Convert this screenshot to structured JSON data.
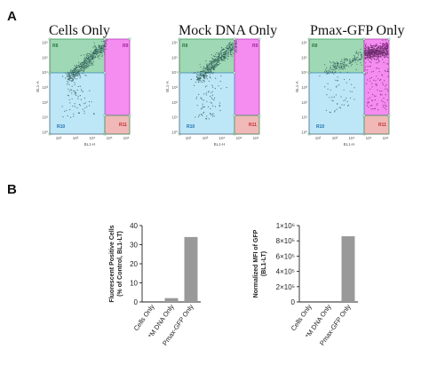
{
  "figure": {
    "panel_a_label": "A",
    "panel_b_label": "B"
  },
  "colors": {
    "gate_green": "#9fd8b4",
    "gate_pink": "#f58cf0",
    "gate_blue": "#bde6f7",
    "gate_red": "#f1b8b8",
    "events_dark": "#2e5f58",
    "events_gfp": "#6b2a6b",
    "bar_gray": "#999999"
  },
  "flow_plots": [
    {
      "title": "Cells Only",
      "x_axis_label": "BL1-H",
      "y_axis_label": "BL1-A",
      "x_ticks": [
        "10²",
        "10³",
        "10⁴",
        "10⁵",
        "10⁶"
      ],
      "y_ticks": [
        "10⁶",
        "10⁵",
        "10⁴",
        "10³",
        "10²",
        "10¹",
        "10⁰"
      ],
      "x_scale": "log",
      "y_scale": "log",
      "gates": {
        "upper_left": "R8",
        "upper_right": "R9",
        "lower_left": "R10",
        "lower_right": "R11"
      },
      "population": "gfp-negative"
    },
    {
      "title": "Mock DNA Only",
      "x_axis_label": "BL1-H",
      "y_axis_label": "BL1-A",
      "x_ticks": [
        "10²",
        "10³",
        "10⁴",
        "10⁵",
        "10⁶"
      ],
      "y_ticks": [
        "10⁶",
        "10⁵",
        "10⁴",
        "10³",
        "10²",
        "10¹",
        "10⁰"
      ],
      "x_scale": "log",
      "y_scale": "log",
      "gates": {
        "upper_left": "R8",
        "upper_right": "R9",
        "lower_left": "R10",
        "lower_right": "R11"
      },
      "population": "gfp-negative"
    },
    {
      "title": "Pmax-GFP Only",
      "x_axis_label": "BL1-H",
      "y_axis_label": "BL1-A",
      "x_ticks": [
        "10²",
        "10³",
        "10⁴",
        "10⁵",
        "10⁶"
      ],
      "y_ticks": [
        "10⁶",
        "10⁵",
        "10⁴",
        "10³",
        "10²",
        "10¹",
        "10⁰"
      ],
      "x_scale": "log",
      "y_scale": "log",
      "gates": {
        "upper_left": "R8",
        "upper_right": "R9",
        "lower_left": "R10",
        "lower_right": "R11"
      },
      "population": "gfp-positive"
    }
  ],
  "chart_data": [
    {
      "type": "bar",
      "categories": [
        "Cells Only",
        "*M DNA Only",
        "Pmax-GFP Only"
      ],
      "values": [
        0,
        2,
        34
      ],
      "ylabel": "Fluorescent Positive Cells\n(% of Control, BL1-LT)",
      "ylim": [
        0,
        40
      ],
      "yticks": [
        0,
        10,
        20,
        30,
        40
      ],
      "ytick_labels": [
        "0",
        "10",
        "20",
        "30",
        "40"
      ],
      "grid": false
    },
    {
      "type": "bar",
      "categories": [
        "Cells Only",
        "*M DNA Only",
        "Pmax-GFP Only"
      ],
      "values": [
        0,
        0,
        860000
      ],
      "ylabel": "Normalized MFI of GFP\n(BL1-LT)",
      "ylim": [
        0,
        1000000
      ],
      "yticks": [
        0,
        200000,
        400000,
        600000,
        800000,
        1000000
      ],
      "ytick_labels": [
        "0",
        "2×10⁵",
        "4×10⁵",
        "6×10⁵",
        "8×10⁵",
        "1×10⁶"
      ],
      "grid": false
    }
  ]
}
